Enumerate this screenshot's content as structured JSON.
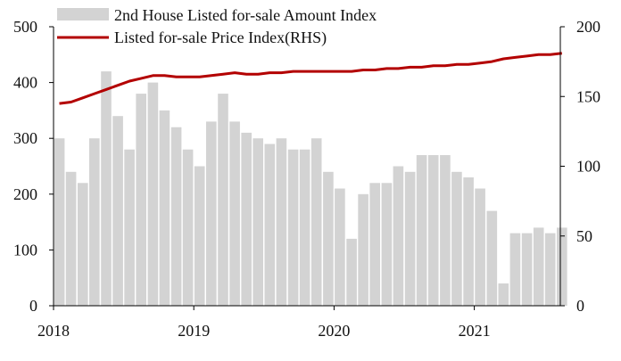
{
  "chart_data": {
    "type": "bar",
    "title": "",
    "xlabel": "",
    "ylabel": "",
    "x_ticks": [
      "2018",
      "2019",
      "2020",
      "2021"
    ],
    "x_range": [
      "2018-01",
      "2021-08"
    ],
    "left_axis": {
      "ylim": [
        0,
        500
      ],
      "ticks": [
        "0",
        "100",
        "200",
        "300",
        "400",
        "500"
      ]
    },
    "right_axis": {
      "ylim": [
        0,
        200
      ],
      "ticks": [
        "0",
        "50",
        "100",
        "150",
        "200"
      ]
    },
    "legend_position": "top-left",
    "grid": false,
    "series": [
      {
        "name": "2nd House Listed for-sale Amount Index",
        "type": "bar",
        "axis": "left",
        "color": "#d3d3d3",
        "x": [
          "2018-01",
          "2018-02",
          "2018-03",
          "2018-04",
          "2018-05",
          "2018-06",
          "2018-07",
          "2018-08",
          "2018-09",
          "2018-10",
          "2018-11",
          "2018-12",
          "2019-01",
          "2019-02",
          "2019-03",
          "2019-04",
          "2019-05",
          "2019-06",
          "2019-07",
          "2019-08",
          "2019-09",
          "2019-10",
          "2019-11",
          "2019-12",
          "2020-01",
          "2020-02",
          "2020-03",
          "2020-04",
          "2020-05",
          "2020-06",
          "2020-07",
          "2020-08",
          "2020-09",
          "2020-10",
          "2020-11",
          "2020-12",
          "2021-01",
          "2021-02",
          "2021-03",
          "2021-04",
          "2021-05",
          "2021-06",
          "2021-07",
          "2021-08"
        ],
        "values": [
          300,
          240,
          220,
          300,
          420,
          340,
          280,
          380,
          400,
          350,
          320,
          280,
          250,
          330,
          380,
          330,
          310,
          300,
          290,
          300,
          280,
          280,
          300,
          240,
          210,
          120,
          200,
          220,
          220,
          250,
          240,
          270,
          270,
          270,
          240,
          230,
          210,
          170,
          40,
          130,
          130,
          140,
          130,
          140
        ]
      },
      {
        "name": "Listed for-sale Price Index(RHS)",
        "type": "line",
        "axis": "right",
        "color": "#b30000",
        "x": [
          "2018-01",
          "2018-02",
          "2018-03",
          "2018-04",
          "2018-05",
          "2018-06",
          "2018-07",
          "2018-08",
          "2018-09",
          "2018-10",
          "2018-11",
          "2018-12",
          "2019-01",
          "2019-02",
          "2019-03",
          "2019-04",
          "2019-05",
          "2019-06",
          "2019-07",
          "2019-08",
          "2019-09",
          "2019-10",
          "2019-11",
          "2019-12",
          "2020-01",
          "2020-02",
          "2020-03",
          "2020-04",
          "2020-05",
          "2020-06",
          "2020-07",
          "2020-08",
          "2020-09",
          "2020-10",
          "2020-11",
          "2020-12",
          "2021-01",
          "2021-02",
          "2021-03",
          "2021-04",
          "2021-05",
          "2021-06",
          "2021-07",
          "2021-08"
        ],
        "values": [
          145,
          146,
          149,
          152,
          155,
          158,
          161,
          163,
          165,
          165,
          164,
          164,
          164,
          165,
          166,
          167,
          166,
          166,
          167,
          167,
          168,
          168,
          168,
          168,
          168,
          168,
          169,
          169,
          170,
          170,
          171,
          171,
          172,
          172,
          173,
          173,
          174,
          175,
          177,
          178,
          179,
          180,
          180,
          181
        ]
      }
    ]
  }
}
